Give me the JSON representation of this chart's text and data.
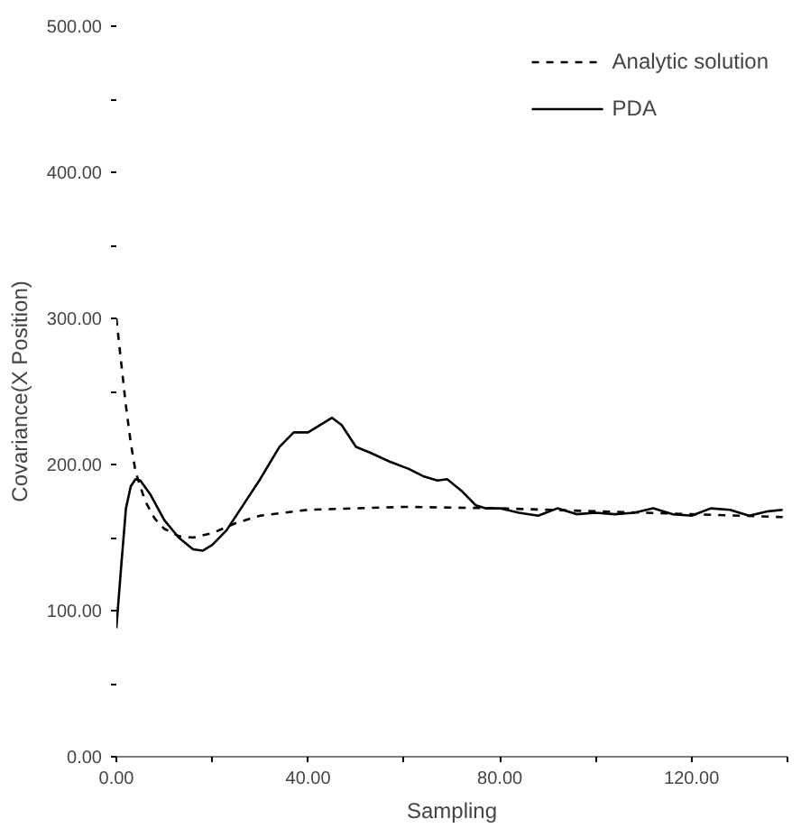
{
  "chart_data": {
    "type": "line",
    "xlabel": "Sampling",
    "ylabel": "Covariance(X Position)",
    "xlim": [
      0,
      140
    ],
    "ylim": [
      0,
      500
    ],
    "xticks": [
      {
        "value": 0,
        "label": "0.00"
      },
      {
        "value": 20,
        "label": null
      },
      {
        "value": 40,
        "label": "40.00"
      },
      {
        "value": 60,
        "label": null
      },
      {
        "value": 80,
        "label": "80.00"
      },
      {
        "value": 100,
        "label": null
      },
      {
        "value": 120,
        "label": "120.00"
      },
      {
        "value": 140,
        "label": null
      }
    ],
    "yticks": [
      {
        "value": 0,
        "label": "0.00"
      },
      {
        "value": 50,
        "label": null
      },
      {
        "value": 100,
        "label": "100.00"
      },
      {
        "value": 150,
        "label": null
      },
      {
        "value": 200,
        "label": "200.00"
      },
      {
        "value": 250,
        "label": null
      },
      {
        "value": 300,
        "label": "300.00"
      },
      {
        "value": 350,
        "label": null
      },
      {
        "value": 400,
        "label": "400.00"
      },
      {
        "value": 450,
        "label": null
      },
      {
        "value": 500,
        "label": "500.00"
      }
    ],
    "grid": false,
    "legend": "top right",
    "marker": "none",
    "series": [
      {
        "name": "Analytic solution",
        "color": "#000000",
        "line_style": "dashed",
        "x": [
          0,
          1,
          2,
          3,
          4,
          6,
          8,
          10,
          13,
          16,
          20,
          25,
          30,
          40,
          60,
          80,
          100,
          120,
          139
        ],
        "values": [
          300,
          270,
          240,
          215,
          195,
          175,
          163,
          156,
          151,
          150,
          153,
          160,
          165,
          169,
          171,
          170,
          168,
          166,
          164
        ]
      },
      {
        "name": "PDA",
        "color": "#000000",
        "line_style": "solid",
        "x": [
          0,
          1,
          2,
          3,
          4,
          5,
          7,
          10,
          13,
          16,
          18,
          20,
          23,
          26,
          30,
          34,
          37,
          40,
          43,
          45,
          47,
          50,
          53,
          57,
          61,
          64,
          67,
          69,
          72,
          75,
          77,
          80,
          84,
          88,
          92,
          96,
          100,
          104,
          108,
          112,
          116,
          120,
          124,
          128,
          132,
          136,
          139
        ],
        "values": [
          88,
          130,
          170,
          185,
          190,
          189,
          180,
          162,
          150,
          142,
          141,
          145,
          155,
          170,
          190,
          212,
          222,
          222,
          228,
          232,
          227,
          212,
          208,
          202,
          197,
          192,
          189,
          190,
          182,
          172,
          170,
          170,
          167,
          165,
          170,
          166,
          167,
          166,
          167,
          170,
          166,
          165,
          170,
          169,
          165,
          168,
          169
        ]
      }
    ]
  }
}
